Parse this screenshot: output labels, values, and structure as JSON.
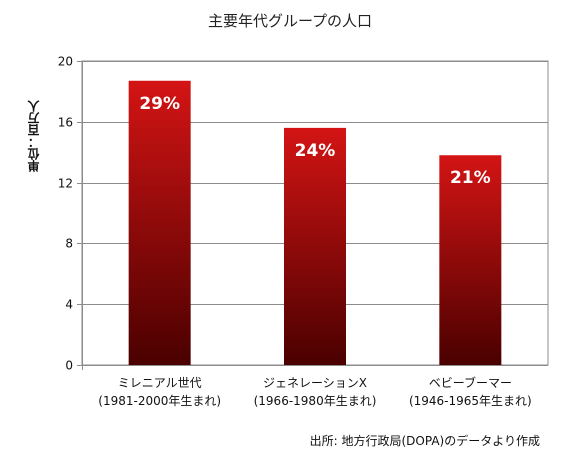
{
  "chart_data": {
    "type": "bar",
    "title": "主要年代グループの人口",
    "ylabel": "単位：百万人",
    "ylim": [
      0,
      20
    ],
    "yticks": [
      0,
      4,
      8,
      12,
      16,
      20
    ],
    "grid": true,
    "categories": [
      {
        "line1": "ミレニアル世代",
        "line2": "(1981-2000年生まれ)"
      },
      {
        "line1": "ジェネレーションX",
        "line2": "(1966-1980年生まれ)"
      },
      {
        "line1": "ベビーブーマー",
        "line2": "(1946-1965年生まれ)"
      }
    ],
    "values": [
      18.7,
      15.6,
      13.8
    ],
    "data_labels": [
      "29%",
      "24%",
      "21%"
    ],
    "colors": {
      "bar_top": "#d41414",
      "bar_bottom": "#4a0000",
      "label": "#ffffff",
      "grid": "#8c8c8c",
      "plot_border": "#8c8c8c"
    },
    "source": "出所: 地方行政局(DOPA)のデータより作成"
  }
}
